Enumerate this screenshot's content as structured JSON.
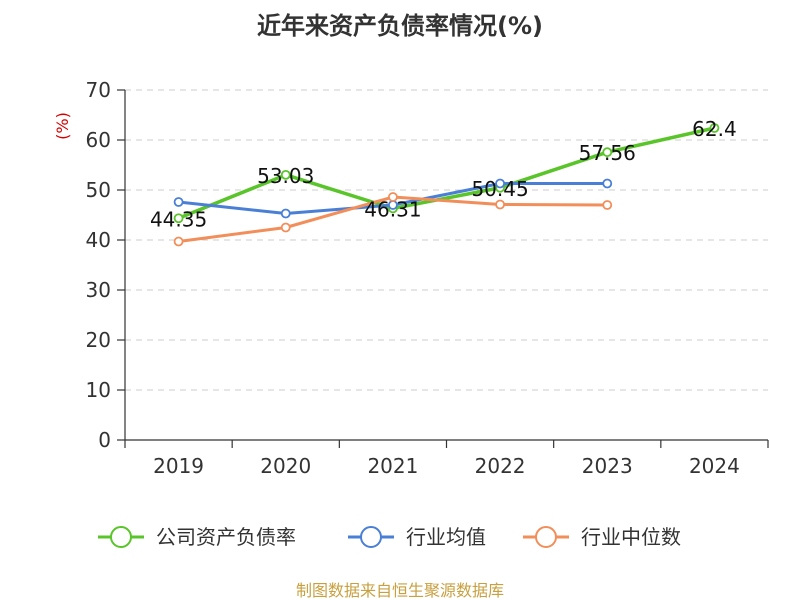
{
  "chart_data": {
    "type": "line",
    "title": "近年来资产负债率情况(%)",
    "ylabel": "(%)",
    "xlabel": "",
    "categories": [
      "2019",
      "2020",
      "2021",
      "2022",
      "2023",
      "2024"
    ],
    "ylim": [
      0,
      70
    ],
    "yticks": [
      0,
      10,
      20,
      30,
      40,
      50,
      60,
      70
    ],
    "grid": true,
    "legend_position": "bottom",
    "series": [
      {
        "name": "公司资产负债率",
        "color": "#5ac52a",
        "values": [
          44.35,
          53.03,
          46.31,
          50.45,
          57.56,
          62.4
        ],
        "labels": [
          "44.35",
          "53.03",
          "46.31",
          "50.45",
          "57.56",
          "62.4"
        ]
      },
      {
        "name": "行业均值",
        "color": "#4a7fd6",
        "values": [
          47.6,
          45.3,
          47.0,
          51.3,
          51.3,
          null
        ]
      },
      {
        "name": "行业中位数",
        "color": "#f28e5a",
        "values": [
          39.7,
          42.5,
          48.6,
          47.1,
          47.0,
          null
        ]
      }
    ]
  },
  "footer": {
    "source": "制图数据来自恒生聚源数据库"
  }
}
